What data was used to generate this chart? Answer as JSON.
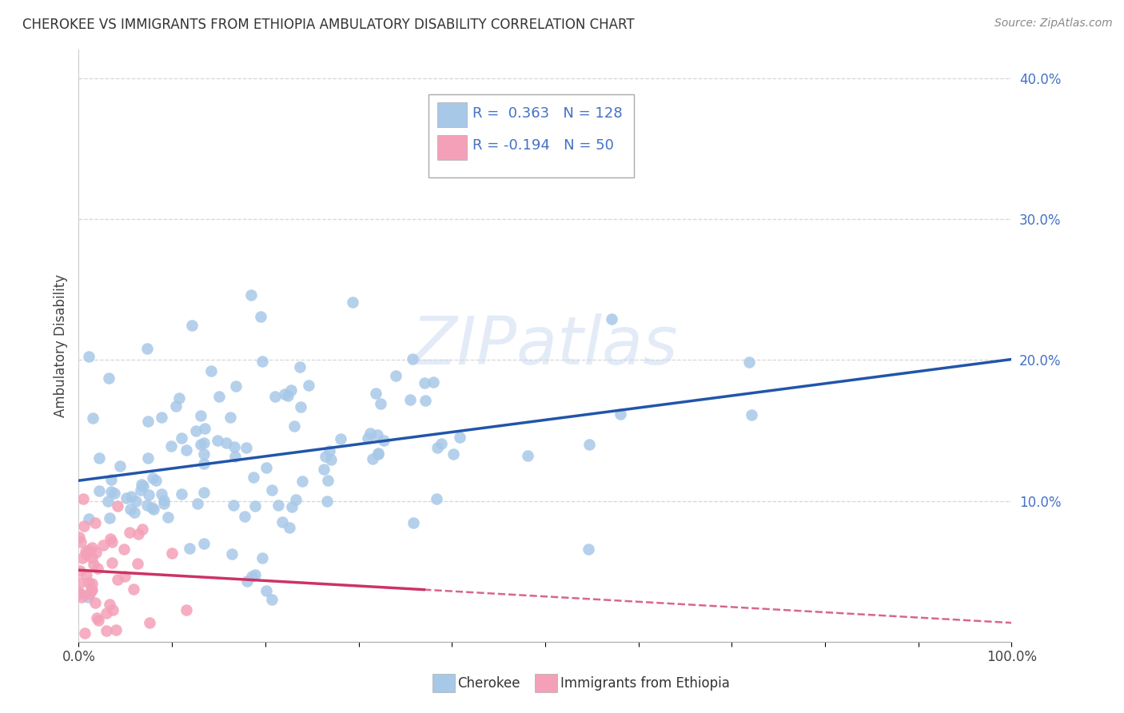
{
  "title": "CHEROKEE VS IMMIGRANTS FROM ETHIOPIA AMBULATORY DISABILITY CORRELATION CHART",
  "source": "Source: ZipAtlas.com",
  "ylabel": "Ambulatory Disability",
  "cherokee_R": 0.363,
  "cherokee_N": 128,
  "ethiopia_R": -0.194,
  "ethiopia_N": 50,
  "cherokee_color": "#a8c8e8",
  "cherokee_line_color": "#2255aa",
  "ethiopia_color": "#f4a0b8",
  "ethiopia_line_color": "#cc3366",
  "xlim": [
    0.0,
    1.0
  ],
  "ylim": [
    0.0,
    0.42
  ],
  "background_color": "#ffffff",
  "grid_color": "#cccccc",
  "legend_color": "#4472c4",
  "watermark_text": "ZIPatlas",
  "bottom_legend_cherokee": "Cherokee",
  "bottom_legend_ethiopia": "Immigrants from Ethiopia"
}
